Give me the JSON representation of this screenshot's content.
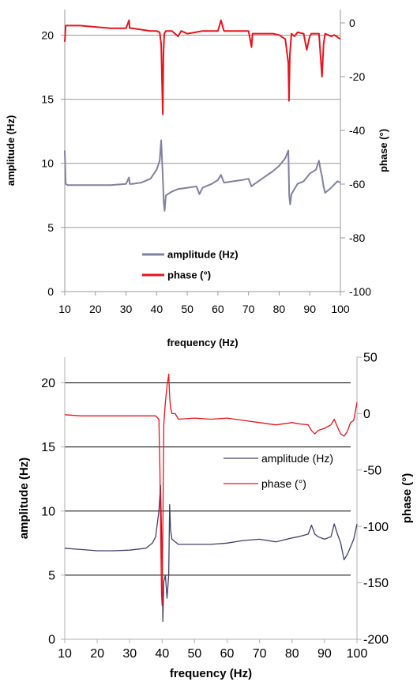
{
  "chart_data": [
    {
      "type": "line",
      "xlabel": "frequency (Hz)",
      "ylabel": "amplitude (Hz)",
      "y2label": "phase (°)",
      "xlim": [
        10,
        100
      ],
      "ylim": [
        0,
        22
      ],
      "y2lim": [
        -100,
        5
      ],
      "xticks": [
        "10",
        "20",
        "30",
        "40",
        "50",
        "60",
        "70",
        "80",
        "90",
        "100"
      ],
      "yticks": [
        "0",
        "5",
        "10",
        "15",
        "20"
      ],
      "y2ticks": [
        "0",
        "-20",
        "-40",
        "-60",
        "-80",
        "-100"
      ],
      "grid": "horizontal",
      "legend": "bottom-center",
      "series": [
        {
          "name": "amplitude (Hz)",
          "axis": "left",
          "color": "#8080a0",
          "x": [
            10,
            10.3,
            11,
            15,
            20,
            25,
            30,
            31,
            31.2,
            32,
            35,
            38,
            40,
            41,
            41.5,
            42,
            42.3,
            42.6,
            43,
            45,
            47,
            50,
            53,
            54,
            55,
            58,
            60,
            61,
            62,
            65,
            68,
            70,
            71,
            72,
            75,
            78,
            80,
            82,
            83,
            83.3,
            83.6,
            84,
            86,
            88,
            90,
            92,
            93,
            93.5,
            94,
            94.5,
            95,
            97,
            99,
            100
          ],
          "values": [
            11,
            8.4,
            8.3,
            8.3,
            8.3,
            8.3,
            8.4,
            8.9,
            8.4,
            8.4,
            8.5,
            8.8,
            9.5,
            10.2,
            11.8,
            9,
            7,
            6.3,
            7.5,
            7.8,
            8,
            8.1,
            8.2,
            7.6,
            8.1,
            8.4,
            8.7,
            9.1,
            8.5,
            8.6,
            8.7,
            8.8,
            8.2,
            8.4,
            8.9,
            9.4,
            9.8,
            10.4,
            11,
            7.5,
            6.8,
            7.6,
            8.4,
            8.6,
            9.2,
            9.5,
            10.2,
            9.5,
            9,
            8.2,
            7.7,
            8.1,
            8.6,
            8.5
          ]
        },
        {
          "name": "phase (°)",
          "axis": "right",
          "color": "#e8141c",
          "x": [
            10,
            10.3,
            11,
            15,
            20,
            25,
            30,
            31,
            31.2,
            32,
            35,
            38,
            40,
            41,
            41.5,
            42,
            42.2,
            42.5,
            43,
            45,
            47,
            48,
            50,
            55,
            58,
            60,
            61,
            62,
            65,
            68,
            70,
            71,
            71.3,
            72,
            75,
            78,
            80,
            82,
            83,
            83.2,
            83.5,
            84,
            85,
            86,
            88,
            89,
            90,
            90.5,
            91,
            93,
            94,
            94.5,
            95,
            97,
            98,
            100
          ],
          "values": [
            -7,
            -1,
            -1,
            -1,
            -1.5,
            -2,
            -2,
            1,
            -2,
            -2,
            -2.5,
            -3,
            -3,
            -3.5,
            -8,
            -34,
            -12,
            -4,
            -3,
            -3,
            -5,
            -3,
            -4,
            -3,
            -3,
            -3,
            1,
            -3,
            -3,
            -3,
            -3,
            -9,
            -4,
            -4,
            -4,
            -4,
            -4.5,
            -6,
            -15,
            -29,
            -12,
            -4,
            -5,
            -3.5,
            -4,
            -10,
            -5,
            -4,
            -4,
            -4,
            -20,
            -8,
            -4,
            -5,
            -4.5,
            -6
          ]
        }
      ]
    },
    {
      "type": "line",
      "xlabel": "frequency (Hz)",
      "ylabel": "amplitude (Hz)",
      "y2label": "phase (°)",
      "xlim": [
        10,
        100
      ],
      "ylim": [
        0,
        22
      ],
      "y2lim": [
        -200,
        50
      ],
      "xticks": [
        "10",
        "20",
        "30",
        "40",
        "50",
        "60",
        "70",
        "80",
        "90",
        "100"
      ],
      "yticks": [
        "0",
        "5",
        "10",
        "15",
        "20"
      ],
      "y2ticks": [
        "50",
        "0",
        "-50",
        "-100",
        "-150",
        "-200"
      ],
      "grid": "horizontal",
      "legend": "right",
      "series": [
        {
          "name": "amplitude (Hz)",
          "axis": "left",
          "color": "#40406a",
          "x": [
            10,
            15,
            20,
            25,
            30,
            35,
            37,
            38,
            39,
            39.5,
            40,
            40.2,
            40.5,
            41,
            41.5,
            42,
            42.3,
            42.6,
            43,
            45,
            50,
            55,
            60,
            65,
            70,
            75,
            80,
            82,
            85,
            86,
            87,
            88,
            90,
            92,
            93,
            94,
            95,
            96,
            97,
            98,
            99,
            100
          ],
          "values": [
            7.1,
            7,
            6.9,
            6.9,
            6.95,
            7.1,
            7.5,
            8,
            10,
            12,
            6,
            1.4,
            4.5,
            5,
            3.2,
            5,
            10.5,
            8.5,
            7.8,
            7.4,
            7.4,
            7.4,
            7.5,
            7.7,
            7.8,
            7.6,
            7.9,
            8,
            8.2,
            8.9,
            8.2,
            8,
            7.8,
            8,
            9,
            8.2,
            7.5,
            6.2,
            6.6,
            7.2,
            7.8,
            9
          ]
        },
        {
          "name": "phase (°)",
          "axis": "right",
          "color": "#e8141c",
          "x": [
            10,
            15,
            20,
            25,
            30,
            35,
            38,
            39,
            39.3,
            39.6,
            39.8,
            40,
            40.2,
            40.5,
            41,
            41.5,
            41.8,
            42,
            42.3,
            42.6,
            43,
            44,
            45,
            50,
            55,
            60,
            65,
            70,
            75,
            80,
            82,
            85,
            86,
            87,
            88,
            90,
            92,
            93,
            94,
            95,
            96,
            97,
            98,
            99,
            100
          ],
          "values": [
            -1,
            -2,
            -2,
            -2,
            -2,
            -2,
            -2,
            -5,
            -50,
            -120,
            -160,
            -170,
            -100,
            -10,
            10,
            25,
            30,
            35,
            15,
            5,
            0,
            0,
            -5,
            -4,
            -5,
            -4,
            -6,
            -8,
            -10,
            -8,
            -9,
            -10,
            -15,
            -18,
            -15,
            -13,
            -10,
            -5,
            -12,
            -18,
            -20,
            -16,
            -8,
            -6,
            10
          ]
        }
      ]
    }
  ]
}
